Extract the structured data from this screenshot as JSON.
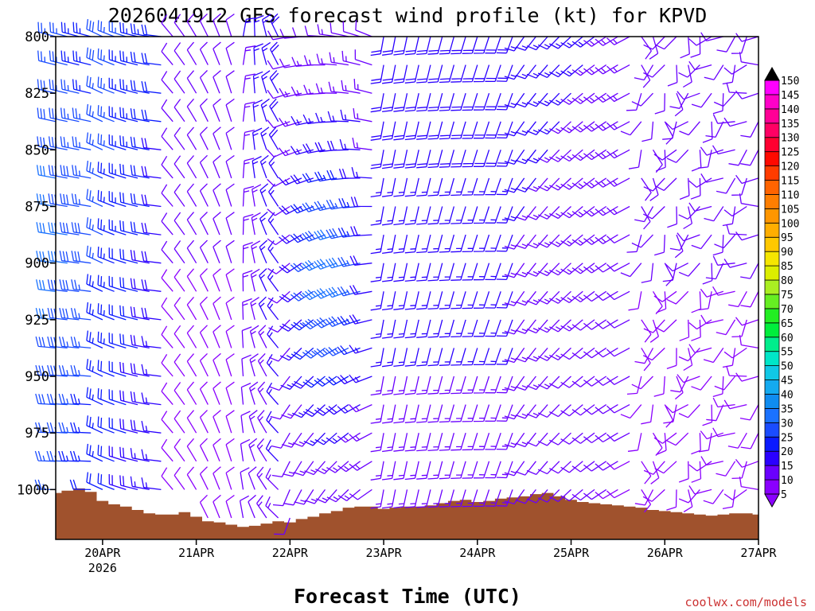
{
  "chart_data": {
    "type": "wind_barb_time_height",
    "title": "2026041912 GFS forecast wind profile (kt) for KPVD",
    "xlabel": "Forecast Time (UTC)",
    "ylabel": "",
    "y_ticks": [
      800,
      825,
      850,
      875,
      900,
      925,
      950,
      975,
      1000
    ],
    "ylim": [
      800,
      1022
    ],
    "x_ticks": [
      {
        "t": 12,
        "label": "20APR",
        "sub": "2026"
      },
      {
        "t": 36,
        "label": "21APR",
        "sub": ""
      },
      {
        "t": 60,
        "label": "22APR",
        "sub": ""
      },
      {
        "t": 84,
        "label": "23APR",
        "sub": ""
      },
      {
        "t": 108,
        "label": "24APR",
        "sub": ""
      },
      {
        "t": 132,
        "label": "25APR",
        "sub": ""
      },
      {
        "t": 156,
        "label": "26APR",
        "sub": ""
      },
      {
        "t": 180,
        "label": "27APR",
        "sub": ""
      }
    ],
    "xlim": [
      0,
      180
    ],
    "colorbar": {
      "levels": [
        5,
        10,
        15,
        20,
        25,
        30,
        35,
        40,
        45,
        50,
        55,
        60,
        65,
        70,
        75,
        80,
        85,
        90,
        95,
        100,
        105,
        110,
        115,
        120,
        125,
        130,
        135,
        140,
        145,
        150
      ],
      "colors": [
        "#8a00ff",
        "#6a00ff",
        "#2a00ff",
        "#0a1aff",
        "#1a4cff",
        "#1a72ff",
        "#0f8cf0",
        "#14aaf0",
        "#10c8e6",
        "#00e6c8",
        "#00ee8c",
        "#00ee3c",
        "#22ee22",
        "#66ee22",
        "#aaee22",
        "#dcee00",
        "#f5e600",
        "#ffc800",
        "#ffae00",
        "#ff9600",
        "#ff7e00",
        "#ff6400",
        "#ff3c00",
        "#ff0a00",
        "#ff0030",
        "#ff0064",
        "#ff0096",
        "#ff00c8",
        "#ff00ff",
        "#ff00ff"
      ]
    },
    "barb_times": [
      0,
      3,
      6,
      9,
      12,
      15,
      18,
      21,
      24,
      27,
      30,
      33,
      36,
      39,
      42,
      45,
      48,
      51,
      54,
      57,
      60,
      63,
      66,
      69,
      72,
      75,
      78,
      81,
      84,
      87,
      90,
      93,
      96,
      99,
      102,
      105,
      108,
      111,
      114,
      117,
      120,
      123,
      126,
      129,
      132,
      135,
      138,
      141,
      144,
      147,
      150,
      153,
      156,
      159,
      162,
      165,
      168,
      171,
      174,
      177,
      180
    ],
    "barb_levels": [
      800,
      812.5,
      825,
      837.5,
      850,
      862.5,
      875,
      887.5,
      900,
      912.5,
      925,
      937.5,
      950,
      962.5,
      975,
      987.5,
      1000,
      1012.5
    ],
    "terrain_surface_pressure": [
      {
        "t": 0,
        "p": 1001.5
      },
      {
        "t": 3,
        "p": 1000.5
      },
      {
        "t": 6,
        "p": 999.5
      },
      {
        "t": 9,
        "p": 1001
      },
      {
        "t": 12,
        "p": 1005
      },
      {
        "t": 15,
        "p": 1006.5
      },
      {
        "t": 18,
        "p": 1007.5
      },
      {
        "t": 21,
        "p": 1009
      },
      {
        "t": 24,
        "p": 1010.5
      },
      {
        "t": 27,
        "p": 1011
      },
      {
        "t": 30,
        "p": 1011
      },
      {
        "t": 33,
        "p": 1010
      },
      {
        "t": 36,
        "p": 1012
      },
      {
        "t": 39,
        "p": 1014
      },
      {
        "t": 42,
        "p": 1014.5
      },
      {
        "t": 45,
        "p": 1015.5
      },
      {
        "t": 48,
        "p": 1016.5
      },
      {
        "t": 51,
        "p": 1016
      },
      {
        "t": 54,
        "p": 1015
      },
      {
        "t": 57,
        "p": 1014
      },
      {
        "t": 60,
        "p": 1014.5
      },
      {
        "t": 63,
        "p": 1013
      },
      {
        "t": 66,
        "p": 1012
      },
      {
        "t": 69,
        "p": 1010.5
      },
      {
        "t": 72,
        "p": 1009.5
      },
      {
        "t": 75,
        "p": 1008
      },
      {
        "t": 78,
        "p": 1007.5
      },
      {
        "t": 81,
        "p": 1007.5
      },
      {
        "t": 84,
        "p": 1008.5
      },
      {
        "t": 87,
        "p": 1008
      },
      {
        "t": 90,
        "p": 1007.5
      },
      {
        "t": 93,
        "p": 1007.5
      },
      {
        "t": 96,
        "p": 1007
      },
      {
        "t": 99,
        "p": 1006
      },
      {
        "t": 102,
        "p": 1005
      },
      {
        "t": 105,
        "p": 1004.5
      },
      {
        "t": 108,
        "p": 1005.5
      },
      {
        "t": 111,
        "p": 1005
      },
      {
        "t": 114,
        "p": 1004
      },
      {
        "t": 117,
        "p": 1003.5
      },
      {
        "t": 120,
        "p": 1003
      },
      {
        "t": 123,
        "p": 1002
      },
      {
        "t": 126,
        "p": 1001.5
      },
      {
        "t": 129,
        "p": 1003
      },
      {
        "t": 132,
        "p": 1004.5
      },
      {
        "t": 135,
        "p": 1005.5
      },
      {
        "t": 138,
        "p": 1006
      },
      {
        "t": 141,
        "p": 1006.5
      },
      {
        "t": 144,
        "p": 1007
      },
      {
        "t": 147,
        "p": 1007.5
      },
      {
        "t": 150,
        "p": 1008
      },
      {
        "t": 153,
        "p": 1009
      },
      {
        "t": 156,
        "p": 1009.5
      },
      {
        "t": 159,
        "p": 1010
      },
      {
        "t": 162,
        "p": 1010.5
      },
      {
        "t": 165,
        "p": 1011
      },
      {
        "t": 168,
        "p": 1011.5
      },
      {
        "t": 171,
        "p": 1011
      },
      {
        "t": 174,
        "p": 1010.5
      },
      {
        "t": 177,
        "p": 1010.5
      },
      {
        "t": 180,
        "p": 1011
      }
    ],
    "terrain_color": "#a0522d"
  },
  "credit": "coolwx.com/models",
  "credit_color": "#cc3333"
}
